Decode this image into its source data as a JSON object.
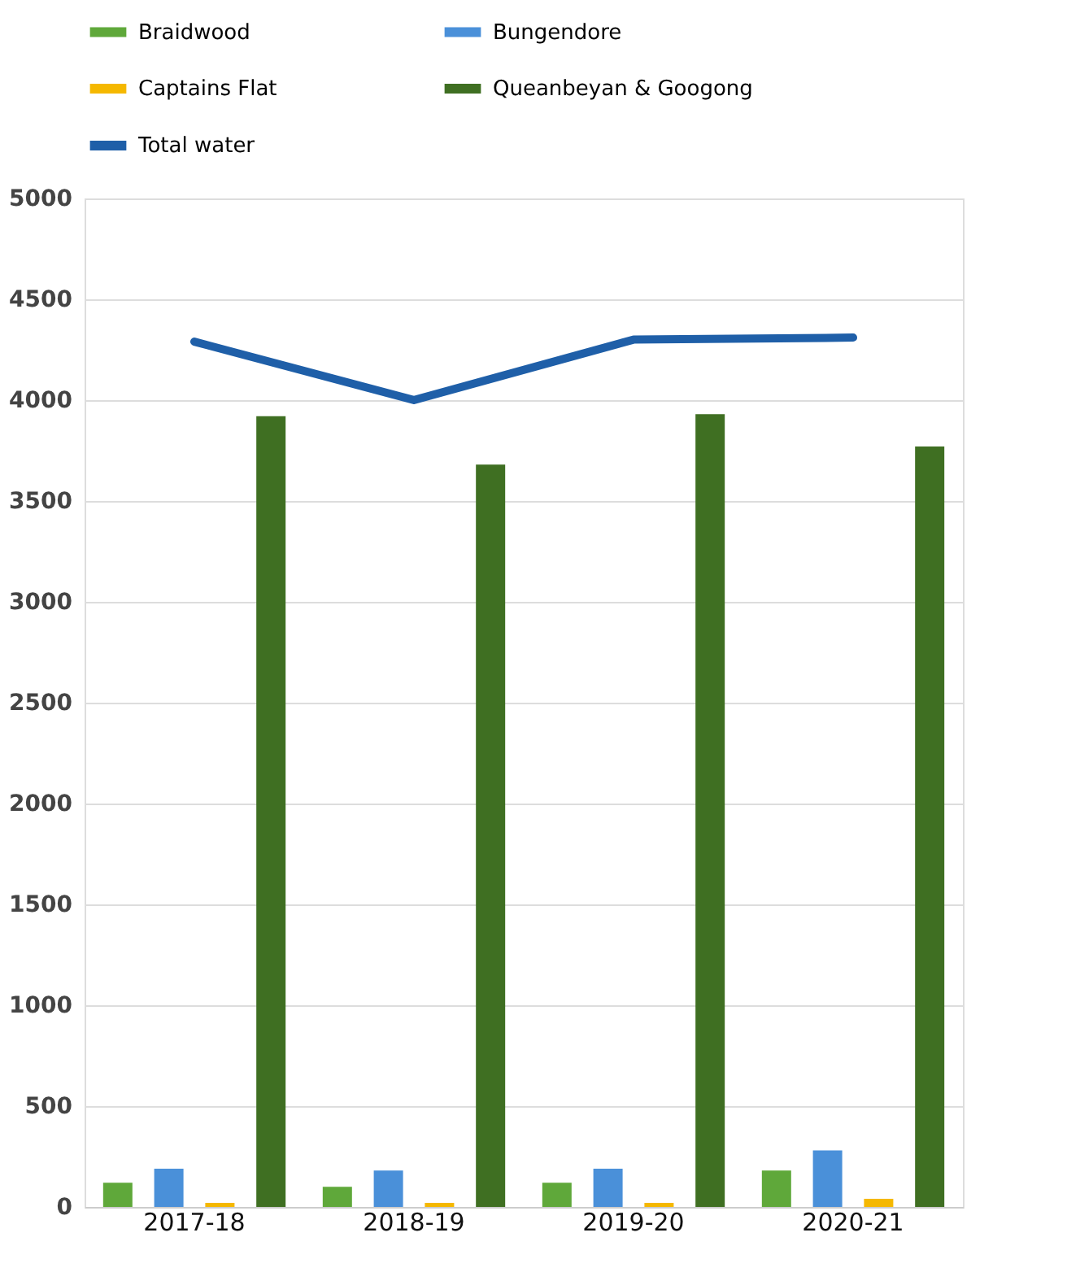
{
  "chart_data": {
    "type": "bar",
    "categories": [
      "2017-18",
      "2018-19",
      "2019-20",
      "2020-21"
    ],
    "series": [
      {
        "name": "Braidwood",
        "color": "#5fa83a",
        "values": [
          120,
          100,
          120,
          180
        ]
      },
      {
        "name": "Bungendore",
        "color": "#4a90d9",
        "values": [
          190,
          180,
          190,
          280
        ]
      },
      {
        "name": "Captains Flat",
        "color": "#f5b800",
        "values": [
          20,
          20,
          20,
          40
        ]
      },
      {
        "name": "Queanbeyan & Googong",
        "color": "#3f6f22",
        "values": [
          3920,
          3680,
          3930,
          3770
        ]
      },
      {
        "name": "Total water",
        "color": "#1f5fa8",
        "type": "line",
        "values": [
          4290,
          4000,
          4300,
          4310
        ]
      }
    ],
    "ylim": [
      0,
      5000
    ],
    "yticks": [
      0,
      500,
      1000,
      1500,
      2000,
      2500,
      3000,
      3500,
      4000,
      4500,
      5000
    ],
    "grid": "y",
    "legend": "top",
    "marker": "none",
    "line_style": "solid"
  }
}
